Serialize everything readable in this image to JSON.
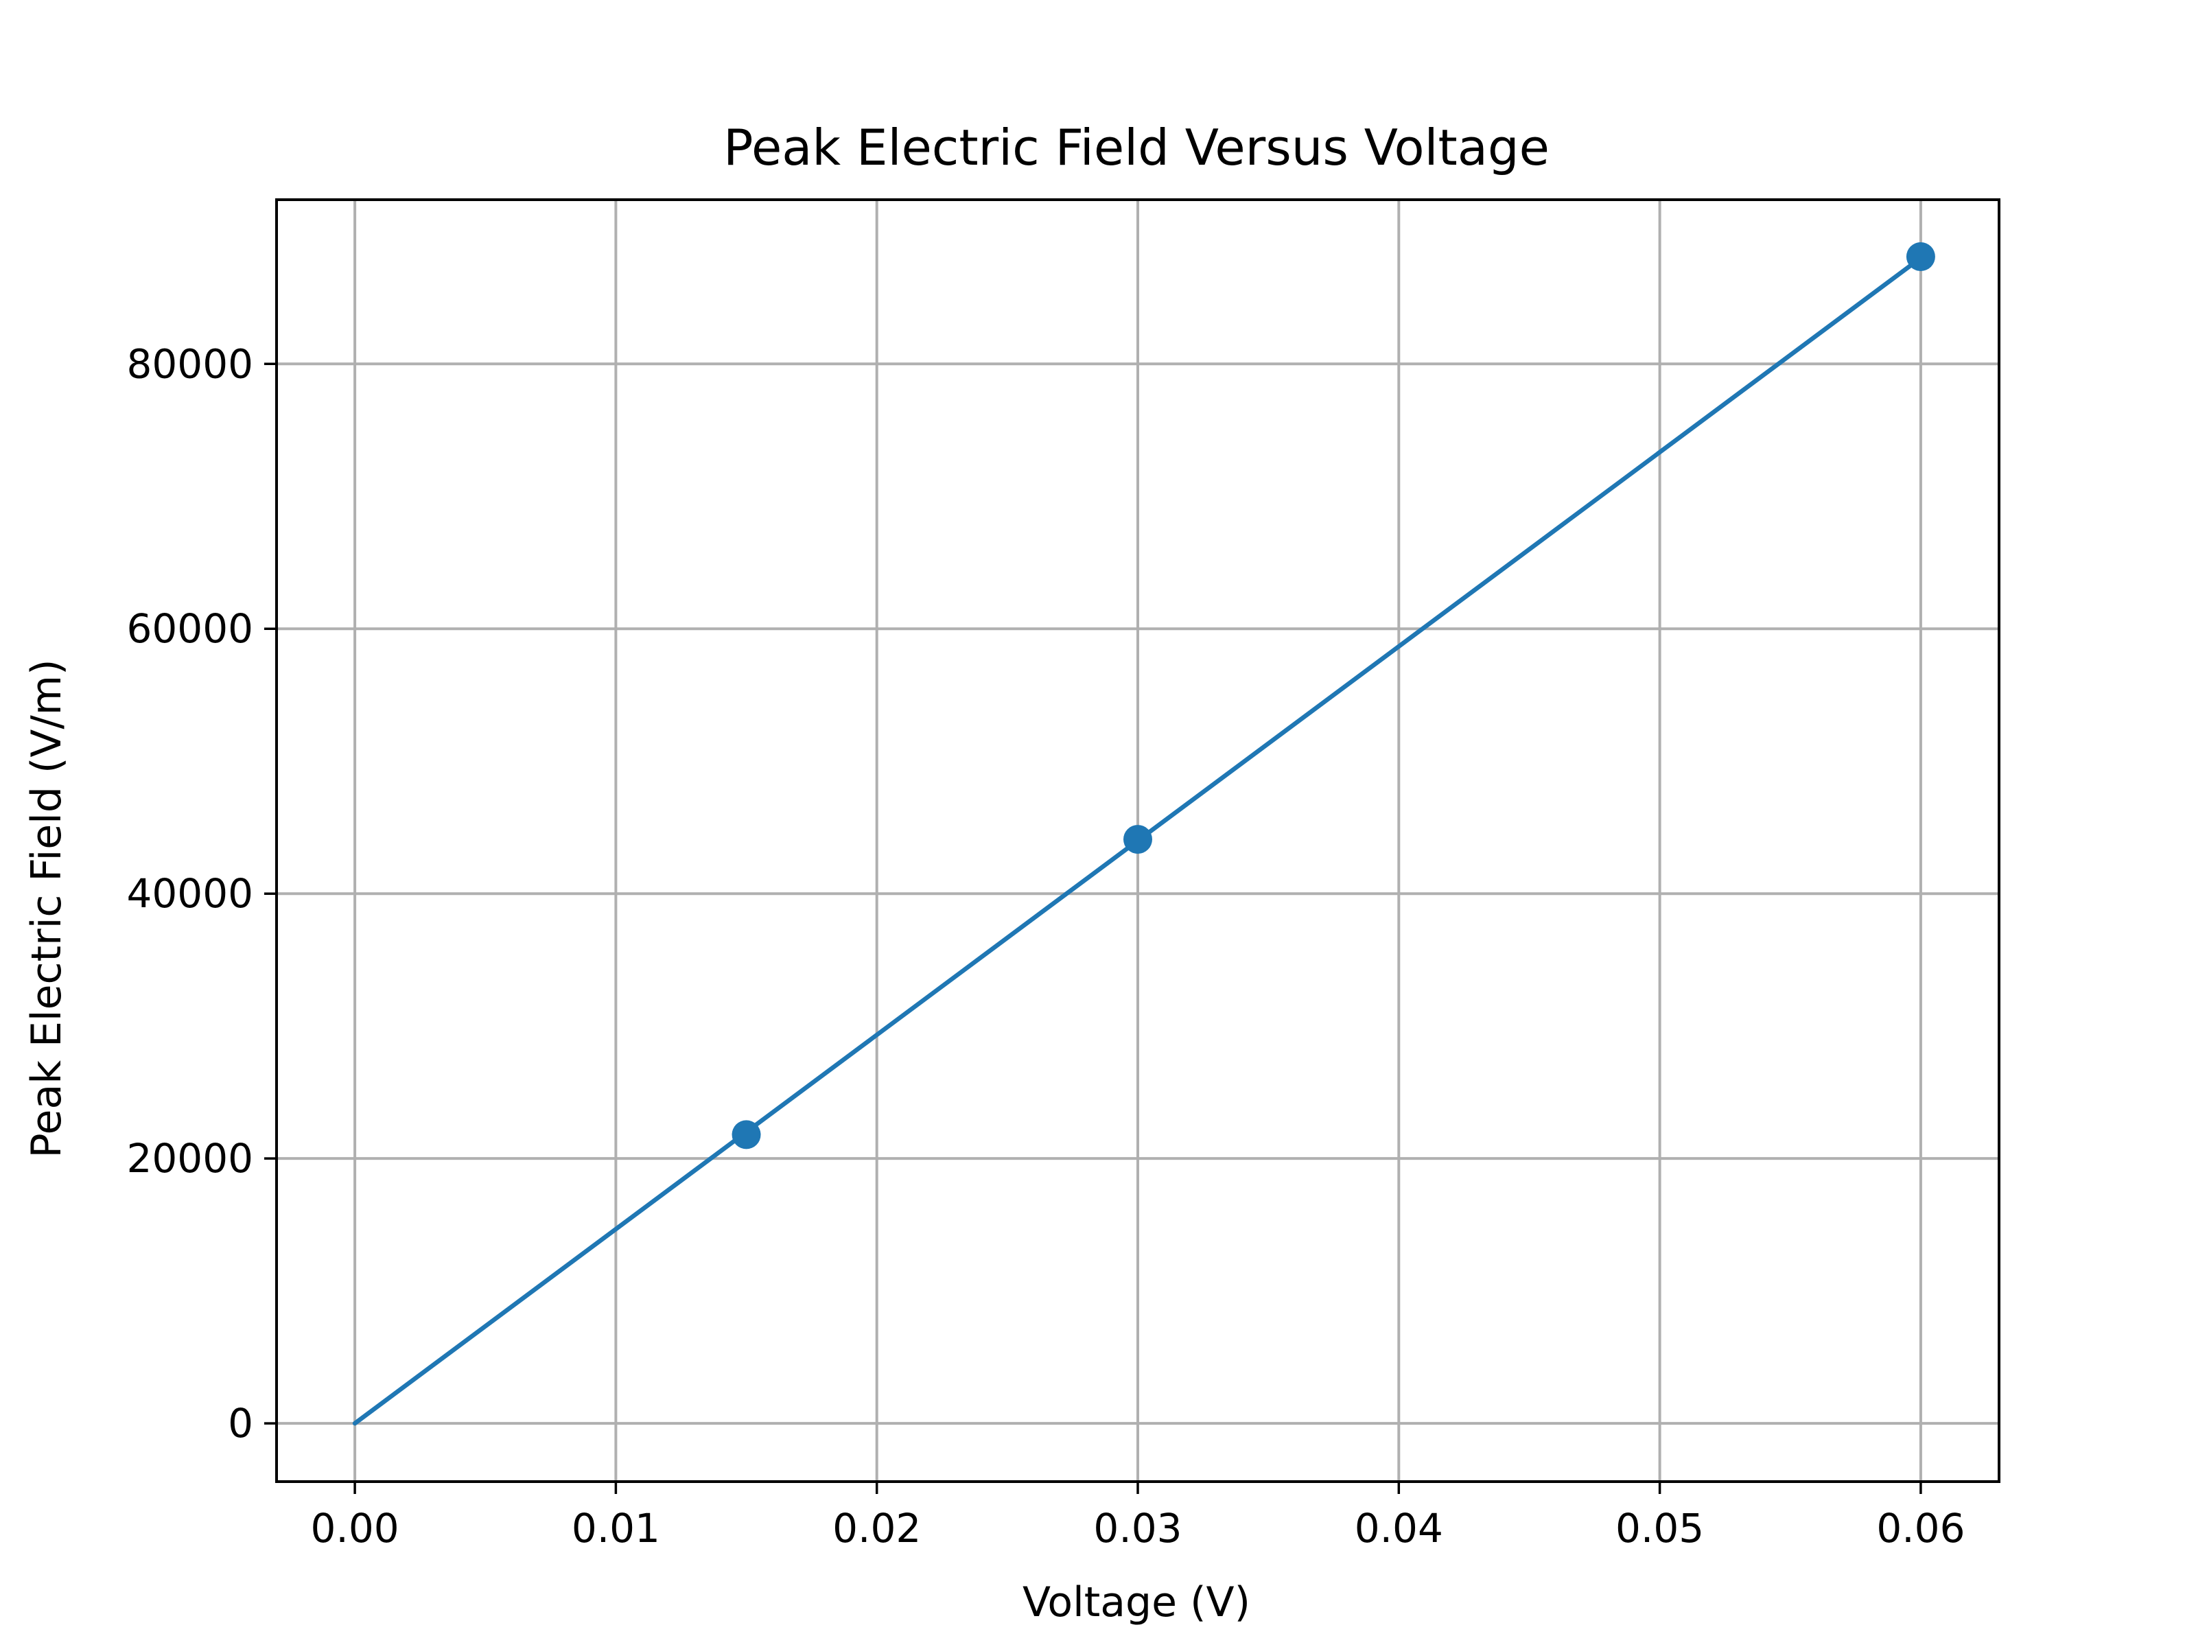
{
  "chart_data": {
    "type": "line",
    "title": "Peak Electric Field Versus Voltage",
    "xlabel": "Voltage (V)",
    "ylabel": "Peak Electric Field (V/m)",
    "xlim": [
      -0.003,
      0.063
    ],
    "ylim": [
      -4400,
      92400
    ],
    "x_ticks": [
      0.0,
      0.01,
      0.02,
      0.03,
      0.04,
      0.05,
      0.06
    ],
    "x_tick_labels": [
      "0.00",
      "0.01",
      "0.02",
      "0.03",
      "0.04",
      "0.05",
      "0.06"
    ],
    "y_ticks": [
      0,
      20000,
      40000,
      60000,
      80000
    ],
    "y_tick_labels": [
      "0",
      "20000",
      "40000",
      "60000",
      "80000"
    ],
    "grid": true,
    "legend": "none",
    "series": [
      {
        "style": "line",
        "color": "#1f77b4",
        "x": [
          0.0,
          0.06
        ],
        "y": [
          0,
          88000
        ]
      },
      {
        "style": "markers",
        "color": "#1f77b4",
        "x": [
          0.015,
          0.03,
          0.06
        ],
        "y": [
          21800,
          44100,
          88100
        ]
      }
    ]
  }
}
